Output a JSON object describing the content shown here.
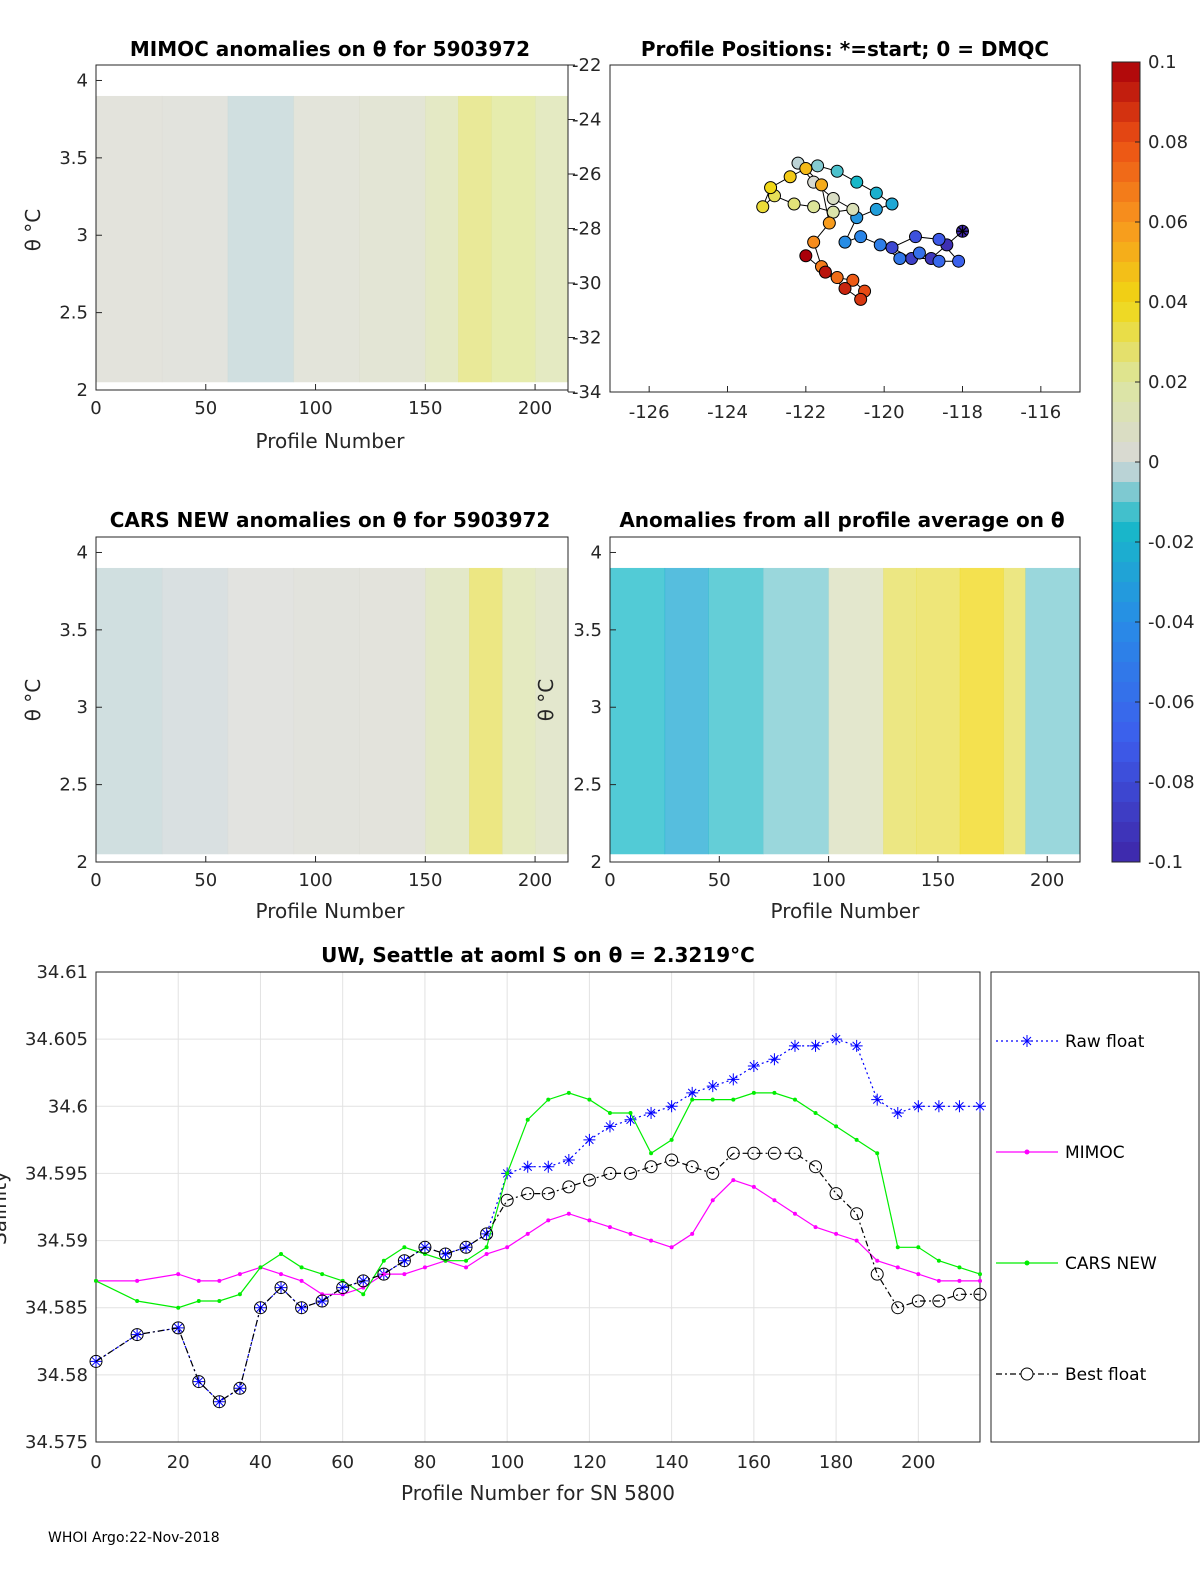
{
  "colors": {
    "raw_float": "#0000ff",
    "mimoc": "#ff00ff",
    "cars_new": "#00ee00",
    "best_float": "#000000",
    "neutral": "#d8d8d8"
  },
  "panels": {
    "mimoc": {
      "title": "MIMOC anomalies on θ  for 5903972",
      "xlabel": "Profile Number",
      "ylabel": "θ °C",
      "xticks": [
        "0",
        "50",
        "100",
        "150",
        "200"
      ],
      "yticks": [
        "2",
        "2.5",
        "3",
        "3.5",
        "4"
      ]
    },
    "positions": {
      "title": "Profile Positions: *=start; 0 = DMQC",
      "xticks": [
        "-126",
        "-124",
        "-122",
        "-120",
        "-118",
        "-116"
      ],
      "yticks": [
        "-22",
        "-24",
        "-26",
        "-28",
        "-30",
        "-32",
        "-34"
      ]
    },
    "cars": {
      "title": "CARS NEW anomalies on θ for 5903972",
      "xlabel": "Profile Number",
      "ylabel": "θ °C",
      "xticks": [
        "0",
        "50",
        "100",
        "150",
        "200"
      ],
      "yticks": [
        "2",
        "2.5",
        "3",
        "3.5",
        "4"
      ]
    },
    "allavg": {
      "title": "Anomalies from all profile average on θ",
      "xlabel": "Profile Number",
      "ylabel": "θ °C",
      "xticks": [
        "0",
        "50",
        "100",
        "150",
        "200"
      ],
      "yticks": [
        "2",
        "2.5",
        "3",
        "3.5",
        "4"
      ]
    }
  },
  "colorbar": {
    "ticks": [
      "0.1",
      "0.08",
      "0.06",
      "0.04",
      "0.02",
      "0",
      "-0.02",
      "-0.04",
      "-0.06",
      "-0.08",
      "-0.1"
    ]
  },
  "chart_data": [
    {
      "type": "heatmap",
      "title": "MIMOC anomalies on θ  for 5903972",
      "xlabel": "Profile Number",
      "ylabel": "θ °C",
      "xlim": [
        0,
        215
      ],
      "ylim": [
        2,
        4.1
      ],
      "clim": [
        -0.1,
        0.1
      ],
      "x_bands": [
        0,
        30,
        60,
        90,
        120,
        150,
        165,
        180,
        200,
        215
      ],
      "band_values": [
        0.003,
        0.002,
        -0.002,
        0.004,
        0.006,
        0.014,
        0.026,
        0.022,
        0.015
      ]
    },
    {
      "type": "scatter",
      "title": "Profile Positions: *=start; 0 = DMQC",
      "xlim": [
        -127,
        -115
      ],
      "ylim": [
        -34,
        -22
      ],
      "lon": [
        -118,
        -118.4,
        -118.8,
        -119.3,
        -119.8,
        -119.2,
        -118.6,
        -118.1,
        -118.6,
        -119.1,
        -119.6,
        -120.1,
        -120.6,
        -121,
        -120.7,
        -120.2,
        -119.8,
        -120.2,
        -120.7,
        -121.2,
        -121.7,
        -122.2,
        -121.8,
        -121.3,
        -120.8,
        -121.3,
        -121.8,
        -122.3,
        -122.8,
        -123.1,
        -122.9,
        -122.4,
        -122,
        -121.6,
        -121.4,
        -121.8,
        -121.6,
        -121.2,
        -120.8,
        -120.5,
        -120.6,
        -121,
        -121.5,
        -122
      ],
      "lat": [
        -28.1,
        -28.6,
        -29.1,
        -29.1,
        -28.7,
        -28.3,
        -28.4,
        -29.2,
        -29.2,
        -28.9,
        -29.1,
        -28.6,
        -28.3,
        -28.5,
        -27.6,
        -27.3,
        -27.1,
        -26.7,
        -26.3,
        -25.9,
        -25.7,
        -25.6,
        -26.3,
        -26.9,
        -27.3,
        -27.4,
        -27.2,
        -27.1,
        -26.8,
        -27.2,
        -26.5,
        -26.1,
        -25.8,
        -26.4,
        -27.8,
        -28.5,
        -29.4,
        -29.8,
        -29.9,
        -30.3,
        -30.6,
        -30.2,
        -29.6,
        -29.0
      ]
    },
    {
      "type": "heatmap",
      "title": "CARS NEW anomalies on θ for 5903972",
      "xlabel": "Profile Number",
      "ylabel": "θ °C",
      "xlim": [
        0,
        215
      ],
      "ylim": [
        2,
        4.1
      ],
      "clim": [
        -0.1,
        0.1
      ],
      "x_bands": [
        0,
        30,
        60,
        90,
        120,
        150,
        170,
        185,
        200,
        215
      ],
      "band_values": [
        -0.002,
        -0.001,
        0.001,
        0.002,
        0.003,
        0.012,
        0.03,
        0.016,
        0.01
      ]
    },
    {
      "type": "heatmap",
      "title": "Anomalies from all profile average on θ",
      "xlabel": "Profile Number",
      "ylabel": "θ °C",
      "xlim": [
        0,
        215
      ],
      "ylim": [
        2,
        4.1
      ],
      "clim": [
        -0.1,
        0.1
      ],
      "x_bands": [
        0,
        25,
        45,
        70,
        100,
        125,
        140,
        160,
        180,
        190,
        215
      ],
      "band_values": [
        -0.016,
        -0.025,
        -0.014,
        -0.008,
        0.01,
        0.03,
        0.032,
        0.04,
        0.03,
        -0.008
      ]
    },
    {
      "type": "line",
      "title": "UW, Seattle at aoml S on θ = 2.3219°C",
      "xlabel": "Profile Number for SN 5800",
      "ylabel": "Salinity",
      "xlim": [
        0,
        215
      ],
      "ylim": [
        34.575,
        34.61
      ],
      "xticks": [
        "0",
        "20",
        "40",
        "60",
        "80",
        "100",
        "120",
        "140",
        "160",
        "180",
        "200"
      ],
      "yticks": [
        "34.575",
        "34.58",
        "34.585",
        "34.59",
        "34.595",
        "34.6",
        "34.605",
        "34.61"
      ],
      "x": [
        0,
        10,
        20,
        25,
        30,
        35,
        40,
        45,
        50,
        55,
        60,
        65,
        70,
        75,
        80,
        85,
        90,
        95,
        100,
        105,
        110,
        115,
        120,
        125,
        130,
        135,
        140,
        145,
        150,
        155,
        160,
        165,
        170,
        175,
        180,
        185,
        190,
        195,
        200,
        205,
        210,
        215
      ],
      "series": [
        {
          "name": "Raw float",
          "values": [
            34.581,
            34.583,
            34.5835,
            34.5795,
            34.578,
            34.579,
            34.585,
            34.5865,
            34.585,
            34.5855,
            34.5865,
            34.587,
            34.5875,
            34.5885,
            34.5895,
            34.589,
            34.5895,
            34.5905,
            34.595,
            34.5955,
            34.5955,
            34.596,
            34.5975,
            34.5985,
            34.599,
            34.5995,
            34.6,
            34.601,
            34.6015,
            34.602,
            34.603,
            34.6035,
            34.6045,
            34.6045,
            34.605,
            34.6045,
            34.6005,
            34.5995,
            34.6,
            34.6,
            34.6,
            34.6
          ]
        },
        {
          "name": "MIMOC",
          "values": [
            34.587,
            34.587,
            34.5875,
            34.587,
            34.587,
            34.5875,
            34.588,
            34.5875,
            34.587,
            34.586,
            34.586,
            34.5865,
            34.5875,
            34.5875,
            34.588,
            34.5885,
            34.588,
            34.589,
            34.5895,
            34.5905,
            34.5915,
            34.592,
            34.5915,
            34.591,
            34.5905,
            34.59,
            34.5895,
            34.5905,
            34.593,
            34.5945,
            34.594,
            34.593,
            34.592,
            34.591,
            34.5905,
            34.59,
            34.5885,
            34.588,
            34.5875,
            34.587,
            34.587,
            34.587
          ]
        },
        {
          "name": "CARS NEW",
          "values": [
            34.587,
            34.5855,
            34.585,
            34.5855,
            34.5855,
            34.586,
            34.588,
            34.589,
            34.588,
            34.5875,
            34.587,
            34.586,
            34.5885,
            34.5895,
            34.589,
            34.5885,
            34.5885,
            34.5895,
            34.595,
            34.599,
            34.6005,
            34.601,
            34.6005,
            34.5995,
            34.5995,
            34.5965,
            34.5975,
            34.6005,
            34.6005,
            34.6005,
            34.601,
            34.601,
            34.6005,
            34.5995,
            34.5985,
            34.5975,
            34.5965,
            34.5895,
            34.5895,
            34.5885,
            34.588,
            34.5875
          ]
        },
        {
          "name": "Best float",
          "values": [
            34.581,
            34.583,
            34.5835,
            34.5795,
            34.578,
            34.579,
            34.585,
            34.5865,
            34.585,
            34.5855,
            34.5865,
            34.587,
            34.5875,
            34.5885,
            34.5895,
            34.589,
            34.5895,
            34.5905,
            34.593,
            34.5935,
            34.5935,
            34.594,
            34.5945,
            34.595,
            34.595,
            34.5955,
            34.596,
            34.5955,
            34.595,
            34.5965,
            34.5965,
            34.5965,
            34.5965,
            34.5955,
            34.5935,
            34.592,
            34.5875,
            34.585,
            34.5855,
            34.5855,
            34.586,
            34.586
          ]
        }
      ],
      "legend": [
        "Raw float",
        "MIMOC",
        "CARS NEW",
        "Best float"
      ]
    }
  ],
  "footer": "WHOI Argo:22-Nov-2018"
}
